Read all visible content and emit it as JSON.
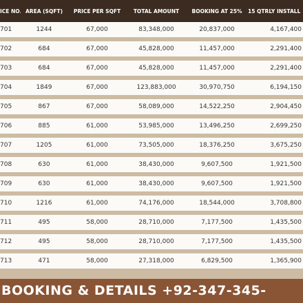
{
  "table": {
    "header": [
      "ICE NO.",
      "AREA (SQFT)",
      "PRICE PER SQFT",
      "TOTAL AMOUNT",
      "BOOKING AT 25%",
      "15 QTRLY INSTALL"
    ],
    "rows": [
      [
        "701",
        "1244",
        "67,000",
        "83,348,000",
        "20,837,000",
        "4,167,400"
      ],
      [
        "702",
        "684",
        "67,000",
        "45,828,000",
        "11,457,000",
        "2,291,400"
      ],
      [
        "703",
        "684",
        "67,000",
        "45,828,000",
        "11,457,000",
        "2,291,400"
      ],
      [
        "704",
        "1849",
        "67,000",
        "123,883,000",
        "30,970,750",
        "6,194,150"
      ],
      [
        "705",
        "867",
        "67,000",
        "58,089,000",
        "14,522,250",
        "2,904,450"
      ],
      [
        "706",
        "885",
        "61,000",
        "53,985,000",
        "13,496,250",
        "2,699,250"
      ],
      [
        "707",
        "1205",
        "61,000",
        "73,505,000",
        "18,376,250",
        "3,675,250"
      ],
      [
        "708",
        "630",
        "61,000",
        "38,430,000",
        "9,607,500",
        "1,921,500"
      ],
      [
        "709",
        "630",
        "61,000",
        "38,430,000",
        "9,607,500",
        "1,921,500"
      ],
      [
        "710",
        "1216",
        "61,000",
        "74,176,000",
        "18,544,000",
        "3,708,800"
      ],
      [
        "711",
        "495",
        "58,000",
        "28,710,000",
        "7,177,500",
        "1,435,500"
      ],
      [
        "712",
        "495",
        "58,000",
        "28,710,000",
        "7,177,500",
        "1,435,500"
      ],
      [
        "713",
        "471",
        "58,000",
        "27,318,000",
        "6,829,500",
        "1,365,900"
      ]
    ]
  },
  "footer": "BOOKING & DETAILS +92-347-345-"
}
